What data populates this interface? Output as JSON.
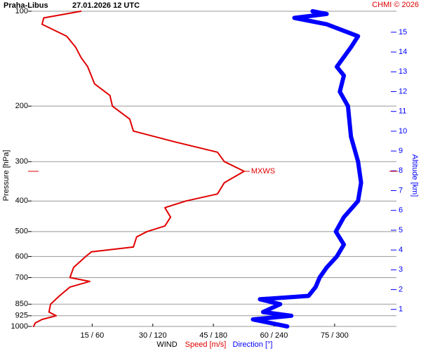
{
  "chart_data": {
    "type": "line",
    "title": "Praha-Libus",
    "subtitle": "27.01.2026 12 UTC",
    "source": "CHMI © 2026",
    "ylabel": "Pressure [hPa]",
    "y2label": "Altitude [km]",
    "xlabel": "WIND",
    "ylog": true,
    "grid": true,
    "ylim": [
      1000,
      100
    ],
    "yticks": [
      100,
      200,
      300,
      400,
      500,
      600,
      700,
      850,
      925,
      1000
    ],
    "y2lim": [
      0.14,
      16.06
    ],
    "y2ticks": [
      1,
      2,
      3,
      4,
      5,
      6,
      7,
      8,
      9,
      10,
      11,
      12,
      13,
      14,
      15
    ],
    "xlim": [
      0,
      90.3
    ],
    "x2lim": [
      0,
      361
    ],
    "xticks": [
      {
        "value": 15,
        "label": "15 / 60"
      },
      {
        "value": 30,
        "label": "30 / 120"
      },
      {
        "value": 45,
        "label": "45 / 180"
      },
      {
        "value": 60,
        "label": "60 / 240"
      },
      {
        "value": 75,
        "label": "75 / 300"
      }
    ],
    "annotation": {
      "text": "MXWS",
      "y": 322,
      "value": 52.6
    },
    "series": [
      {
        "name": "Speed [m/s]",
        "color": "#e00000",
        "axis": "x",
        "y": [
          1000,
          975,
          950,
          925,
          900,
          850,
          800,
          750,
          720,
          700,
          650,
          600,
          580,
          560,
          520,
          500,
          480,
          450,
          420,
          400,
          380,
          350,
          322,
          300,
          280,
          260,
          240,
          220,
          200,
          185,
          170,
          150,
          140,
          130,
          120,
          110,
          105,
          100
        ],
        "values": [
          0.5,
          0.9,
          2.6,
          6.1,
          4.3,
          4.7,
          6.9,
          9.5,
          14.4,
          9.5,
          10.4,
          13.4,
          14.8,
          25.2,
          26,
          28.6,
          33,
          34.4,
          33,
          38.2,
          46,
          47.7,
          52.6,
          47.7,
          46,
          35.6,
          25.2,
          24.3,
          20,
          19.4,
          15.6,
          13.9,
          12.2,
          10.9,
          8.7,
          2.6,
          3,
          12.2
        ]
      },
      {
        "name": "Direction [°]",
        "color": "#0000ff",
        "axis": "x2",
        "y": [
          1000,
          950,
          925,
          900,
          850,
          820,
          800,
          750,
          700,
          650,
          600,
          550,
          500,
          450,
          400,
          350,
          300,
          250,
          200,
          180,
          160,
          150,
          130,
          120,
          110,
          105,
          102,
          100
        ],
        "values": [
          253,
          219,
          257,
          229,
          246,
          226,
          274,
          281,
          285,
          292,
          302,
          309,
          301,
          309,
          323,
          326,
          323,
          316,
          313,
          305,
          309,
          302,
          316,
          323,
          292,
          260,
          292,
          278
        ]
      }
    ]
  }
}
